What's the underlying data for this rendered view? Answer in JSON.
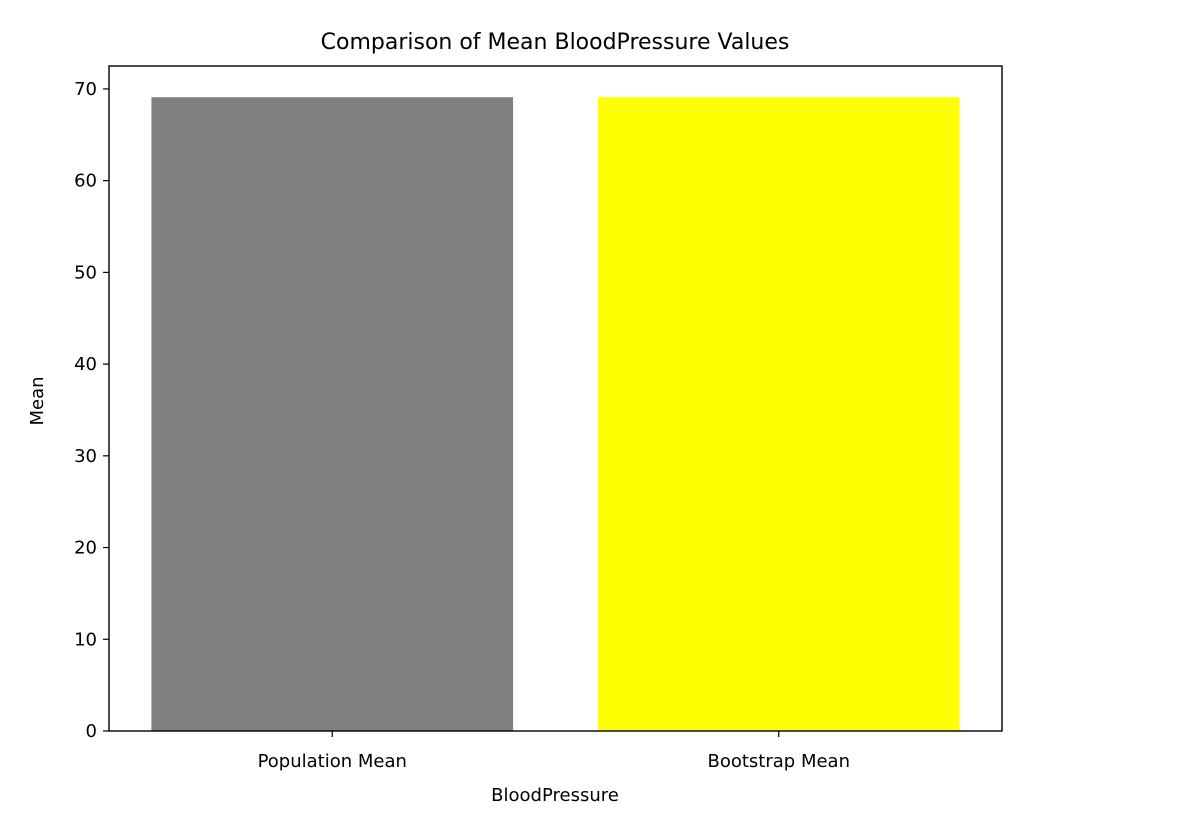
{
  "chart_data": {
    "type": "bar",
    "title": "Comparison of Mean BloodPressure Values",
    "xlabel": "BloodPressure",
    "ylabel": "Mean",
    "categories": [
      "Population Mean",
      "Bootstrap Mean"
    ],
    "values": [
      69.1,
      69.1
    ],
    "colors": [
      "#808080",
      "#ffff00"
    ],
    "ylim": [
      0,
      72.5
    ],
    "yticks": [
      0,
      10,
      20,
      30,
      40,
      50,
      60,
      70
    ],
    "grid": false,
    "legend": "none"
  }
}
